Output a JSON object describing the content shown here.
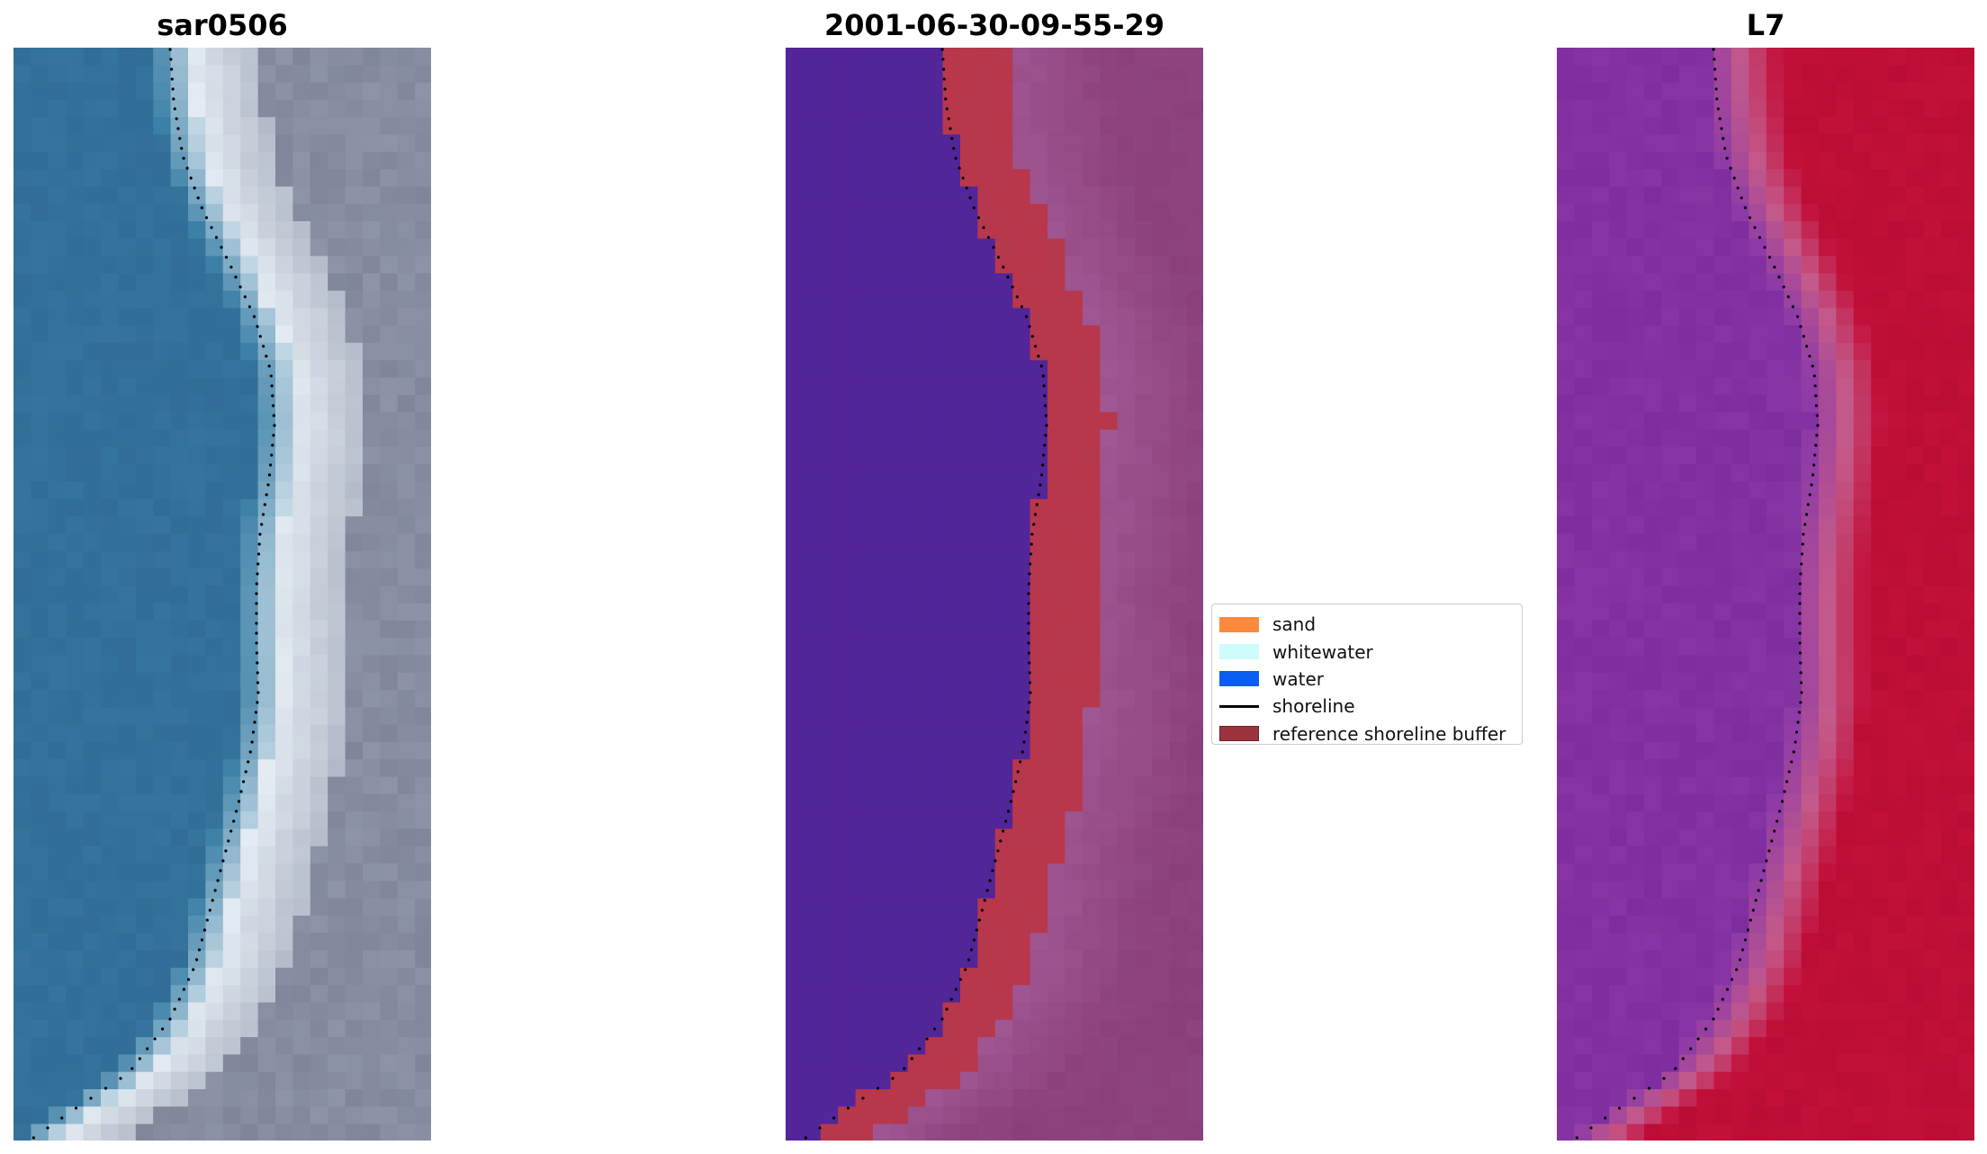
{
  "panels": [
    {
      "title": "sar0506",
      "kind": "rgb"
    },
    {
      "title": "2001-06-30-09-55-29",
      "kind": "classified"
    },
    {
      "title": "L7",
      "kind": "ndwi"
    }
  ],
  "legend": [
    {
      "label": "sand",
      "color": "#fd8a3c",
      "type": "patch"
    },
    {
      "label": "whitewater",
      "color": "#cdfcfa",
      "type": "patch"
    },
    {
      "label": "water",
      "color": "#0b5ef2",
      "type": "patch"
    },
    {
      "label": "shoreline",
      "color": "#000000",
      "type": "line"
    },
    {
      "label": "reference shoreline buffer",
      "color": "#9b333d",
      "type": "patch"
    }
  ],
  "colors": {
    "water_class": "#522599",
    "buffer_red": "#b9374a",
    "land_mauve": "#8a3f78",
    "rgb_water": "#2f6a94",
    "rgb_whitewater": "#e6eef5",
    "rgb_land": "#7d8296",
    "ndwi_water": "#7a2a9c",
    "ndwi_land": "#c2103a"
  }
}
